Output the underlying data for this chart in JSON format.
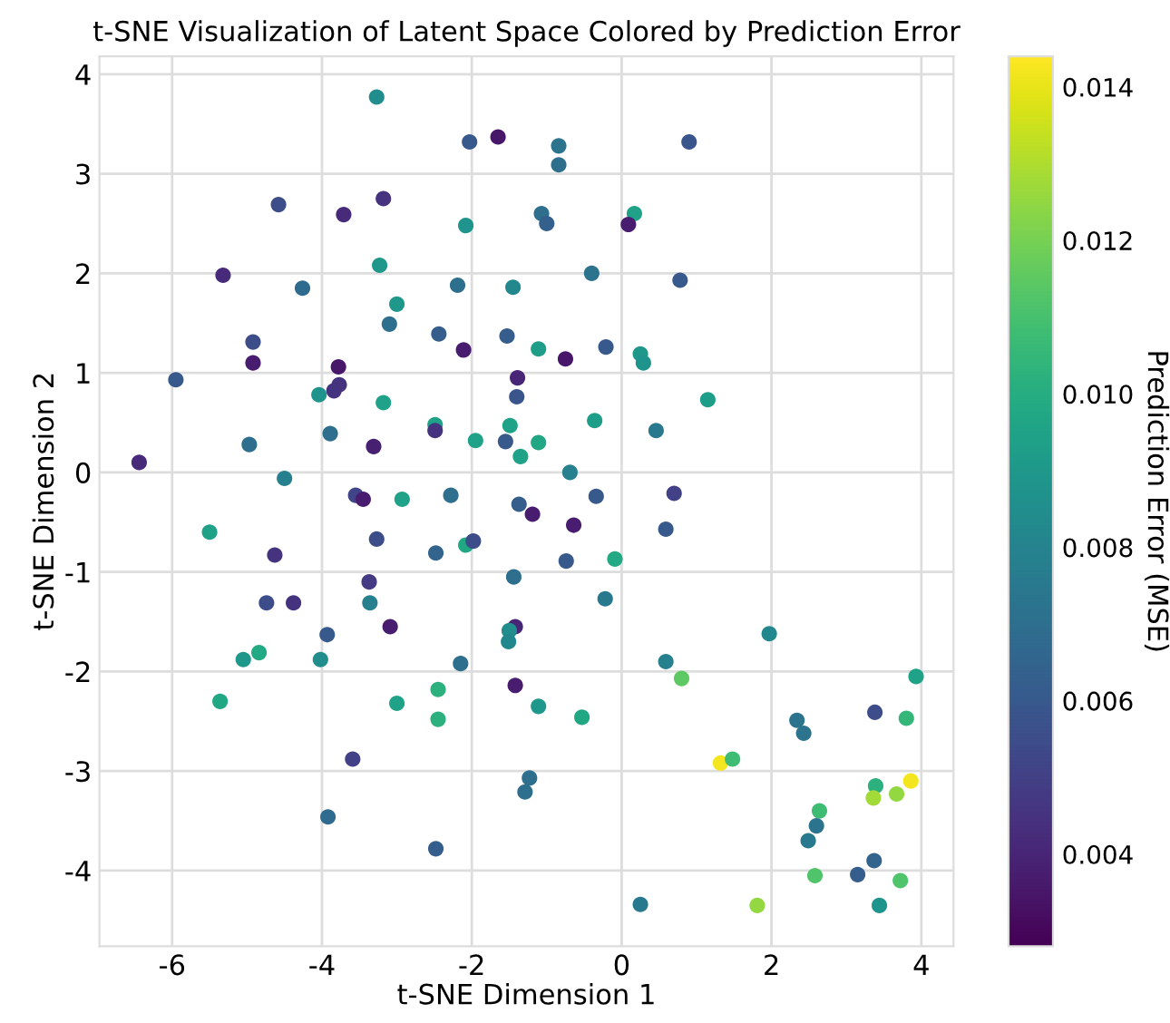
{
  "chart_data": {
    "type": "scatter",
    "title": "t-SNE Visualization of Latent Space Colored by Prediction Error",
    "xlabel": "t-SNE Dimension 1",
    "ylabel": "t-SNE Dimension 2",
    "clabel": "Prediction Error (MSE)",
    "xlim": [
      -6.97,
      4.43
    ],
    "ylim": [
      -4.76,
      4.18
    ],
    "xticks": [
      -6,
      -4,
      -2,
      0,
      2,
      4
    ],
    "yticks": [
      -4,
      -3,
      -2,
      -1,
      0,
      1,
      2,
      3,
      4
    ],
    "clim": [
      0.0028,
      0.0144
    ],
    "cticks": [
      0.004,
      0.006,
      0.008,
      {
        "value": 0.01,
        "label": "0.010"
      },
      0.012,
      0.014
    ],
    "grid": true,
    "marker": "circle",
    "series": [
      {
        "x": [
          -3.27,
          -2.03,
          -1.65,
          -4.58,
          -3.18,
          -3.71,
          -2.08,
          -5.32,
          -3.23,
          -4.26,
          -2.19,
          -1.45,
          -3.0,
          -3.1,
          -2.44,
          -1.53,
          -4.92,
          -2.11,
          -4.92,
          -3.78,
          -1.39,
          -5.95,
          -3.77,
          -3.84,
          -4.04,
          -1.4,
          -3.18,
          -2.49,
          -2.49,
          -1.49,
          -4.97,
          -3.89,
          -1.95,
          -1.55,
          -3.31,
          -1.35,
          -6.44,
          -0.84,
          -0.84,
          0.9,
          -1.07,
          -1.0,
          0.17,
          0.09,
          -0.4,
          0.78,
          -1.11,
          -0.75,
          -0.21,
          0.25,
          0.29,
          1.15,
          -0.36,
          -1.11,
          0.46,
          -0.69,
          -4.5,
          -3.55,
          -3.45,
          -2.93,
          -2.28,
          -1.37,
          -1.19,
          -5.5,
          -4.63,
          -3.27,
          -2.48,
          -2.08,
          -1.98,
          -1.44,
          -4.74,
          -4.38,
          -3.37,
          -3.36,
          -3.09,
          -3.93,
          -1.42,
          -1.5,
          -1.51,
          -5.05,
          -4.84,
          -4.02,
          -2.15,
          -5.36,
          -3.0,
          -2.45,
          -2.45,
          -1.42,
          -3.59,
          -3.92,
          -2.48,
          -1.23,
          -1.29,
          -0.34,
          0.7,
          -0.64,
          0.59,
          -0.74,
          -0.09,
          -0.22,
          1.97,
          0.59,
          0.8,
          3.93,
          -1.11,
          -0.53,
          2.34,
          2.43,
          3.38,
          3.8,
          1.32,
          1.48,
          3.39,
          3.36,
          3.67,
          3.86,
          2.64,
          2.6,
          2.49,
          3.37,
          3.15,
          2.58,
          3.72,
          0.25,
          1.81,
          3.44
        ],
        "values": [
          3.77,
          3.32,
          3.37,
          2.69,
          2.75,
          2.59,
          2.48,
          1.98,
          2.08,
          1.85,
          1.88,
          1.86,
          1.69,
          1.49,
          1.39,
          1.37,
          1.31,
          1.23,
          1.1,
          1.06,
          0.95,
          0.93,
          0.88,
          0.82,
          0.78,
          0.76,
          0.7,
          0.48,
          0.42,
          0.47,
          0.28,
          0.39,
          0.32,
          0.31,
          0.26,
          0.16,
          0.1,
          3.28,
          3.09,
          3.32,
          2.6,
          2.5,
          2.6,
          2.49,
          2.0,
          1.93,
          1.24,
          1.14,
          1.26,
          1.19,
          1.1,
          0.73,
          0.52,
          0.3,
          0.42,
          0.0,
          -0.06,
          -0.23,
          -0.27,
          -0.27,
          -0.23,
          -0.32,
          -0.42,
          -0.6,
          -0.83,
          -0.67,
          -0.81,
          -0.73,
          -0.69,
          -1.05,
          -1.31,
          -1.31,
          -1.1,
          -1.31,
          -1.55,
          -1.63,
          -1.55,
          -1.59,
          -1.7,
          -1.88,
          -1.81,
          -1.88,
          -1.92,
          -2.3,
          -2.32,
          -2.18,
          -2.48,
          -2.14,
          -2.88,
          -3.46,
          -3.78,
          -3.07,
          -3.21,
          -0.24,
          -0.21,
          -0.53,
          -0.57,
          -0.89,
          -0.87,
          -1.27,
          -1.62,
          -1.9,
          -2.07,
          -2.05,
          -2.35,
          -2.46,
          -2.49,
          -2.62,
          -2.41,
          -2.47,
          -2.92,
          -2.88,
          -3.15,
          -3.27,
          -3.23,
          -3.1,
          -3.4,
          -3.55,
          -3.7,
          -3.9,
          -4.04,
          -4.05,
          -4.1,
          -4.34,
          -4.35,
          -4.35
        ],
        "cvalues": [
          0.0085,
          0.006,
          0.0035,
          0.0055,
          0.0045,
          0.0042,
          0.0088,
          0.0042,
          0.009,
          0.0068,
          0.007,
          0.0082,
          0.009,
          0.007,
          0.0062,
          0.0062,
          0.0055,
          0.0037,
          0.0037,
          0.0035,
          0.004,
          0.006,
          0.0045,
          0.0045,
          0.0088,
          0.0058,
          0.0095,
          0.0095,
          0.0045,
          0.0095,
          0.007,
          0.007,
          0.0095,
          0.006,
          0.0038,
          0.0095,
          0.0042,
          0.0072,
          0.007,
          0.0058,
          0.007,
          0.0063,
          0.0095,
          0.0037,
          0.0072,
          0.006,
          0.0092,
          0.0035,
          0.006,
          0.009,
          0.0088,
          0.0092,
          0.0092,
          0.0097,
          0.0075,
          0.0078,
          0.0078,
          0.0052,
          0.0037,
          0.0095,
          0.007,
          0.0062,
          0.0037,
          0.0095,
          0.0045,
          0.0055,
          0.0065,
          0.0097,
          0.0055,
          0.007,
          0.0055,
          0.0045,
          0.0048,
          0.0078,
          0.0037,
          0.006,
          0.004,
          0.0085,
          0.0082,
          0.009,
          0.0098,
          0.0085,
          0.007,
          0.0097,
          0.0095,
          0.0102,
          0.0102,
          0.0037,
          0.005,
          0.0068,
          0.0062,
          0.007,
          0.007,
          0.006,
          0.005,
          0.0037,
          0.006,
          0.006,
          0.0098,
          0.0075,
          0.0082,
          0.0078,
          0.0115,
          0.0095,
          0.009,
          0.0097,
          0.0072,
          0.0072,
          0.0055,
          0.0105,
          0.0142,
          0.0108,
          0.0102,
          0.0128,
          0.0125,
          0.0142,
          0.0108,
          0.0072,
          0.0075,
          0.0065,
          0.0062,
          0.0112,
          0.0112,
          0.0075,
          0.0125,
          0.0088
        ]
      }
    ]
  }
}
